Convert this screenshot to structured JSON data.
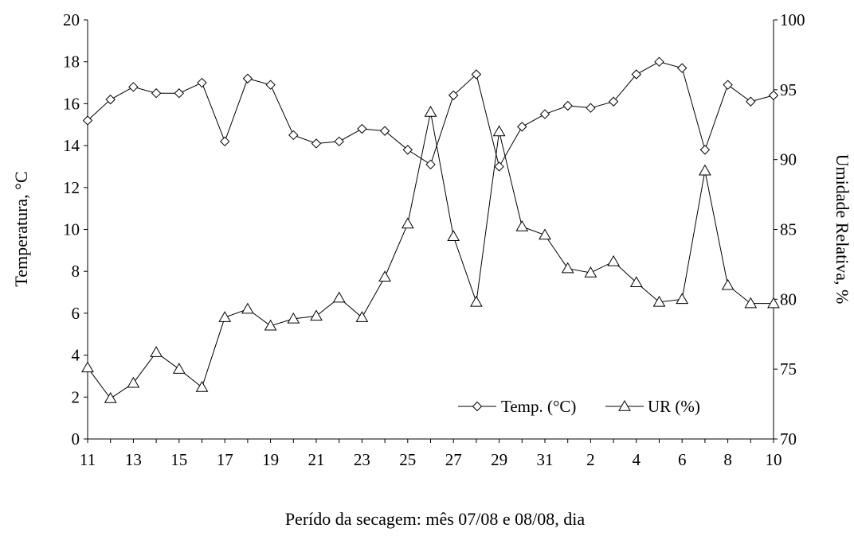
{
  "chart_data": {
    "type": "line",
    "title": "",
    "xlabel": "Perído da secagem: mês 07/08 e 08/08, dia",
    "ylabel": "Temperatura, °C",
    "y2label": "Umidade Relativa, %",
    "ylim": [
      0,
      20
    ],
    "y2lim": [
      70,
      100
    ],
    "yticks": [
      "0",
      "2",
      "4",
      "6",
      "8",
      "10",
      "12",
      "14",
      "16",
      "18",
      "20"
    ],
    "y2ticks": [
      "70",
      "75",
      "80",
      "85",
      "90",
      "95",
      "100"
    ],
    "x": [
      "11",
      "12",
      "13",
      "14",
      "15",
      "16",
      "17",
      "18",
      "19",
      "20",
      "21",
      "22",
      "23",
      "24",
      "25",
      "26",
      "27",
      "28",
      "29",
      "30",
      "31",
      "1",
      "2",
      "3",
      "4",
      "5",
      "6",
      "7",
      "8",
      "9",
      "10"
    ],
    "xtick_labels": [
      "11",
      "13",
      "15",
      "17",
      "19",
      "21",
      "23",
      "25",
      "27",
      "29",
      "31",
      "2",
      "4",
      "6",
      "8",
      "10"
    ],
    "grid": false,
    "legend_position": "bottom-right",
    "series": [
      {
        "name": "Temp. (°C)",
        "axis": "left",
        "marker": "diamond",
        "values": [
          15.2,
          16.2,
          16.8,
          16.5,
          16.5,
          17.0,
          14.2,
          17.2,
          16.9,
          14.5,
          14.1,
          14.2,
          14.8,
          14.7,
          13.8,
          13.1,
          16.4,
          17.4,
          13.0,
          14.9,
          15.5,
          15.9,
          15.8,
          16.1,
          17.4,
          18.0,
          17.7,
          13.8,
          16.9,
          16.1,
          16.4
        ]
      },
      {
        "name": "UR (%)",
        "axis": "right",
        "marker": "triangle",
        "values": [
          75.1,
          72.9,
          74.0,
          76.2,
          75.0,
          73.7,
          78.7,
          79.3,
          78.1,
          78.6,
          78.8,
          80.1,
          78.7,
          81.6,
          85.4,
          93.4,
          84.5,
          79.8,
          92.0,
          85.2,
          84.6,
          82.2,
          81.9,
          82.7,
          81.2,
          79.8,
          80.0,
          89.2,
          81.0,
          79.7,
          79.7
        ]
      }
    ]
  }
}
